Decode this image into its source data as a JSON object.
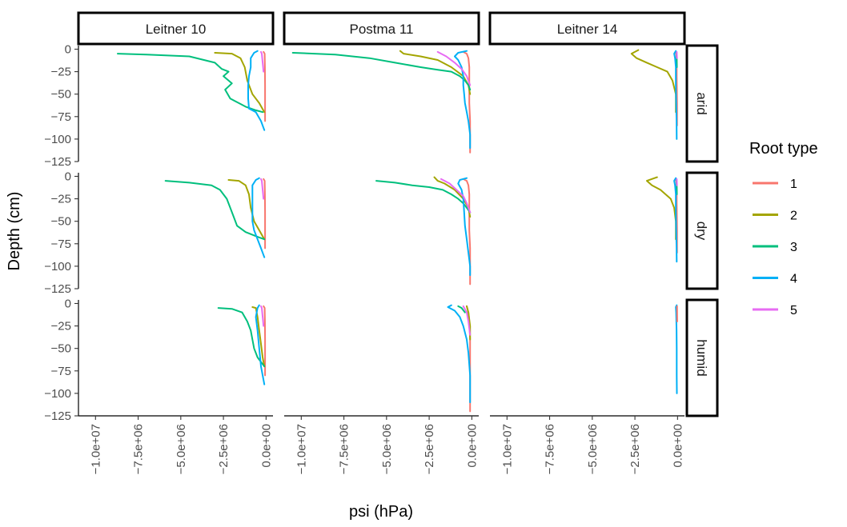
{
  "chart_data": {
    "type": "line",
    "xlabel": "psi (hPa)",
    "ylabel": "Depth (cm)",
    "xlim": [
      -11000000,
      500000
    ],
    "ylim": [
      -125,
      4
    ],
    "x_ticks": [
      -10000000,
      -7500000,
      -5000000,
      -2500000,
      0
    ],
    "x_tick_labels": [
      "−1.0e+07",
      "−7.5e+06",
      "−5.0e+06",
      "−2.5e+06",
      "0.0e+00"
    ],
    "y_ticks": [
      0,
      -25,
      -50,
      -75,
      -100,
      -125
    ],
    "y_tick_labels": [
      "0",
      "−25",
      "−50",
      "−75",
      "−100",
      "−125"
    ],
    "legend_title": "Root type",
    "legend_position": "right",
    "legend": [
      {
        "label": "1",
        "color": "#F8766D"
      },
      {
        "label": "2",
        "color": "#A3A500"
      },
      {
        "label": "3",
        "color": "#00BF7D"
      },
      {
        "label": "4",
        "color": "#00B0F6"
      },
      {
        "label": "5",
        "color": "#E76BF3"
      }
    ],
    "facet_cols": [
      "Leitner 10",
      "Postma 11",
      "Leitner 14"
    ],
    "facet_rows": [
      "arid",
      "dry",
      "humid"
    ],
    "panels": [
      {
        "col": 0,
        "row": 0,
        "series": [
          {
            "name": "1",
            "x": [
              -150000,
              -80000,
              -70000,
              -60000,
              -60000,
              -60000,
              -60000
            ],
            "y": [
              -3,
              -5,
              -20,
              -40,
              -60,
              -70,
              -80
            ]
          },
          {
            "name": "2",
            "x": [
              -3000000,
              -2000000,
              -1500000,
              -1250000,
              -1100000,
              -800000,
              -400000,
              -100000
            ],
            "y": [
              -4,
              -5,
              -10,
              -20,
              -35,
              -50,
              -60,
              -70
            ]
          },
          {
            "name": "3",
            "x": [
              -8700000,
              -7000000,
              -4500000,
              -3000000,
              -2600000,
              -2200000,
              -2500000,
              -2000000,
              -2400000,
              -2100000,
              -1600000,
              -1200000,
              -900000,
              -600000,
              -200000
            ],
            "y": [
              -5,
              -6,
              -8,
              -15,
              -22,
              -25,
              -30,
              -38,
              -45,
              -55,
              -60,
              -64,
              -66,
              -68,
              -70
            ]
          },
          {
            "name": "4",
            "x": [
              -500000,
              -700000,
              -900000,
              -900000,
              -1000000,
              -1050000,
              -1050000,
              -1000000,
              -600000,
              -300000,
              -100000
            ],
            "y": [
              -2,
              -4,
              -10,
              -20,
              -30,
              -40,
              -55,
              -66,
              -70,
              -80,
              -90
            ]
          },
          {
            "name": "5",
            "x": [
              -300000,
              -250000,
              -200000,
              -150000
            ],
            "y": [
              -3,
              -5,
              -15,
              -25
            ]
          }
        ]
      },
      {
        "col": 1,
        "row": 0,
        "series": [
          {
            "name": "1",
            "x": [
              -500000,
              -300000,
              -200000,
              -150000,
              -150000,
              -150000,
              -100000,
              -100000,
              -100000
            ],
            "y": [
              -3,
              -5,
              -10,
              -20,
              -40,
              -60,
              -80,
              -100,
              -115
            ]
          },
          {
            "name": "2",
            "x": [
              -4200000,
              -4000000,
              -3000000,
              -2000000,
              -1200000,
              -500000,
              -200000,
              -100000
            ],
            "y": [
              -2,
              -5,
              -8,
              -12,
              -20,
              -30,
              -40,
              -50
            ]
          },
          {
            "name": "3",
            "x": [
              -10500000,
              -8000000,
              -6000000,
              -4500000,
              -3000000,
              -2000000,
              -1200000,
              -700000,
              -400000,
              -200000,
              -100000
            ],
            "y": [
              -4,
              -6,
              -10,
              -15,
              -20,
              -23,
              -25,
              -30,
              -35,
              -40,
              -45
            ]
          },
          {
            "name": "4",
            "x": [
              -300000,
              -800000,
              -1000000,
              -800000,
              -600000,
              -500000,
              -500000,
              -450000,
              -400000,
              -300000,
              -200000,
              -100000,
              -100000
            ],
            "y": [
              -2,
              -4,
              -8,
              -12,
              -20,
              -30,
              -40,
              -50,
              -60,
              -70,
              -80,
              -95,
              -110
            ]
          },
          {
            "name": "5",
            "x": [
              -2000000,
              -1500000,
              -1000000,
              -600000,
              -300000,
              -100000
            ],
            "y": [
              -3,
              -8,
              -15,
              -22,
              -30,
              -40
            ]
          }
        ]
      },
      {
        "col": 2,
        "row": 0,
        "series": [
          {
            "name": "1",
            "x": [
              -100000,
              -50000,
              -50000,
              -30000,
              -30000
            ],
            "y": [
              -3,
              -10,
              -30,
              -60,
              -85
            ]
          },
          {
            "name": "2",
            "x": [
              -2300000,
              -2700000,
              -2400000,
              -1800000,
              -1200000,
              -600000,
              -300000,
              -100000,
              -100000
            ],
            "y": [
              -1,
              -5,
              -10,
              -15,
              -20,
              -25,
              -35,
              -50,
              -70
            ]
          },
          {
            "name": "3",
            "x": [
              -60000,
              -40000
            ],
            "y": [
              -3,
              -20
            ]
          },
          {
            "name": "4",
            "x": [
              -100000,
              -200000,
              -150000,
              -100000,
              -100000,
              -80000,
              -60000,
              -50000
            ],
            "y": [
              -2,
              -5,
              -10,
              -20,
              -40,
              -60,
              -80,
              -100
            ]
          },
          {
            "name": "5",
            "x": [
              -50000,
              -30000
            ],
            "y": [
              -3,
              -10
            ]
          }
        ]
      },
      {
        "col": 0,
        "row": 1,
        "series": [
          {
            "name": "1",
            "x": [
              -150000,
              -80000,
              -70000,
              -60000,
              -60000,
              -60000,
              -60000
            ],
            "y": [
              -3,
              -5,
              -20,
              -40,
              -60,
              -70,
              -80
            ]
          },
          {
            "name": "2",
            "x": [
              -2200000,
              -1600000,
              -1200000,
              -1000000,
              -900000,
              -700000,
              -400000,
              -100000
            ],
            "y": [
              -4,
              -5,
              -10,
              -20,
              -35,
              -50,
              -60,
              -70
            ]
          },
          {
            "name": "3",
            "x": [
              -5900000,
              -4500000,
              -3200000,
              -2700000,
              -2300000,
              -2100000,
              -1900000,
              -1700000,
              -1200000,
              -800000,
              -400000,
              -100000
            ],
            "y": [
              -5,
              -7,
              -10,
              -15,
              -25,
              -35,
              -45,
              -55,
              -62,
              -65,
              -68,
              -70
            ]
          },
          {
            "name": "4",
            "x": [
              -400000,
              -600000,
              -800000,
              -800000,
              -800000,
              -800000,
              -700000,
              -500000,
              -300000,
              -100000
            ],
            "y": [
              -2,
              -4,
              -10,
              -20,
              -35,
              -50,
              -60,
              -70,
              -80,
              -90
            ]
          },
          {
            "name": "5",
            "x": [
              -300000,
              -250000,
              -200000,
              -150000
            ],
            "y": [
              -3,
              -5,
              -15,
              -25
            ]
          }
        ]
      },
      {
        "col": 1,
        "row": 1,
        "series": [
          {
            "name": "1",
            "x": [
              -500000,
              -300000,
              -200000,
              -150000,
              -150000,
              -150000,
              -100000,
              -100000,
              -100000
            ],
            "y": [
              -3,
              -5,
              -10,
              -20,
              -40,
              -60,
              -80,
              -100,
              -120
            ]
          },
          {
            "name": "2",
            "x": [
              -2200000,
              -2000000,
              -1600000,
              -1000000,
              -500000,
              -200000,
              -100000
            ],
            "y": [
              -1,
              -5,
              -8,
              -15,
              -25,
              -35,
              -45
            ]
          },
          {
            "name": "3",
            "x": [
              -5600000,
              -4500000,
              -3500000,
              -2500000,
              -1700000,
              -1200000,
              -800000,
              -500000,
              -300000,
              -100000
            ],
            "y": [
              -5,
              -7,
              -10,
              -12,
              -15,
              -20,
              -25,
              -30,
              -35,
              -40
            ]
          },
          {
            "name": "4",
            "x": [
              -300000,
              -700000,
              -800000,
              -600000,
              -500000,
              -450000,
              -400000,
              -300000,
              -200000,
              -100000,
              -100000
            ],
            "y": [
              -2,
              -4,
              -8,
              -15,
              -25,
              -40,
              -55,
              -70,
              -85,
              -100,
              -110
            ]
          },
          {
            "name": "5",
            "x": [
              -1800000,
              -1300000,
              -900000,
              -500000,
              -300000,
              -100000
            ],
            "y": [
              -3,
              -8,
              -15,
              -22,
              -30,
              -40
            ]
          }
        ]
      },
      {
        "col": 2,
        "row": 1,
        "series": [
          {
            "name": "1",
            "x": [
              -100000,
              -50000,
              -50000,
              -30000,
              -30000
            ],
            "y": [
              -3,
              -10,
              -30,
              -60,
              -85
            ]
          },
          {
            "name": "2",
            "x": [
              -1200000,
              -1800000,
              -1500000,
              -1000000,
              -700000,
              -400000,
              -200000,
              -100000,
              -100000
            ],
            "y": [
              -1,
              -5,
              -10,
              -15,
              -20,
              -25,
              -35,
              -50,
              -70
            ]
          },
          {
            "name": "3",
            "x": [
              -60000,
              -40000
            ],
            "y": [
              -3,
              -20
            ]
          },
          {
            "name": "4",
            "x": [
              -100000,
              -200000,
              -150000,
              -100000,
              -100000,
              -80000,
              -60000,
              -50000
            ],
            "y": [
              -2,
              -5,
              -10,
              -20,
              -40,
              -60,
              -80,
              -95
            ]
          },
          {
            "name": "5",
            "x": [
              -50000,
              -30000
            ],
            "y": [
              -3,
              -10
            ]
          }
        ]
      },
      {
        "col": 0,
        "row": 2,
        "series": [
          {
            "name": "1",
            "x": [
              -150000,
              -80000,
              -70000,
              -60000,
              -60000,
              -60000
            ],
            "y": [
              -3,
              -5,
              -20,
              -40,
              -60,
              -80
            ]
          },
          {
            "name": "2",
            "x": [
              -800000,
              -600000,
              -500000,
              -400000,
              -300000,
              -200000,
              -100000
            ],
            "y": [
              -4,
              -5,
              -15,
              -30,
              -45,
              -60,
              -70
            ]
          },
          {
            "name": "3",
            "x": [
              -2800000,
              -2000000,
              -1400000,
              -1100000,
              -900000,
              -800000,
              -700000,
              -500000,
              -300000,
              -100000
            ],
            "y": [
              -5,
              -6,
              -10,
              -20,
              -30,
              -40,
              -50,
              -60,
              -65,
              -70
            ]
          },
          {
            "name": "4",
            "x": [
              -400000,
              -500000,
              -600000,
              -500000,
              -400000,
              -300000,
              -200000,
              -100000
            ],
            "y": [
              -2,
              -5,
              -15,
              -30,
              -50,
              -70,
              -80,
              -90
            ]
          },
          {
            "name": "5",
            "x": [
              -300000,
              -250000,
              -200000,
              -150000
            ],
            "y": [
              -3,
              -5,
              -15,
              -25
            ]
          }
        ]
      },
      {
        "col": 1,
        "row": 2,
        "series": [
          {
            "name": "1",
            "x": [
              -300000,
              -200000,
              -150000,
              -100000,
              -100000,
              -100000,
              -100000
            ],
            "y": [
              -3,
              -10,
              -20,
              -40,
              -60,
              -90,
              -120
            ]
          },
          {
            "name": "2",
            "x": [
              -300000,
              -200000,
              -100000,
              -100000
            ],
            "y": [
              -3,
              -10,
              -25,
              -40
            ]
          },
          {
            "name": "3",
            "x": [
              -800000,
              -600000,
              -400000
            ],
            "y": [
              -3,
              -5,
              -10
            ]
          },
          {
            "name": "4",
            "x": [
              -1200000,
              -1400000,
              -1000000,
              -700000,
              -500000,
              -300000,
              -200000,
              -100000,
              -100000
            ],
            "y": [
              -2,
              -4,
              -8,
              -15,
              -25,
              -40,
              -55,
              -80,
              -110
            ]
          },
          {
            "name": "5",
            "x": [
              -500000,
              -300000,
              -200000,
              -100000
            ],
            "y": [
              -3,
              -10,
              -20,
              -35
            ]
          }
        ]
      },
      {
        "col": 2,
        "row": 2,
        "series": [
          {
            "name": "4",
            "x": [
              -50000,
              -100000,
              -80000,
              -60000,
              -50000,
              -50000,
              -40000
            ],
            "y": [
              -2,
              -4,
              -10,
              -30,
              -50,
              -80,
              -100
            ]
          },
          {
            "name": "1",
            "x": [
              -30000,
              -20000
            ],
            "y": [
              -3,
              -20
            ]
          }
        ]
      }
    ]
  }
}
